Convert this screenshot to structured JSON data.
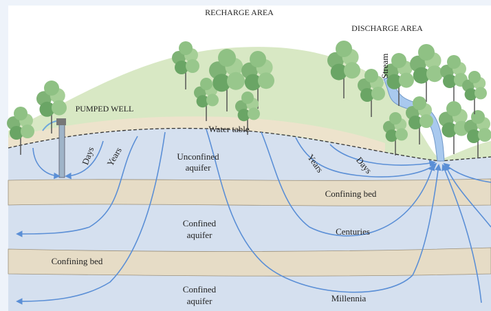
{
  "labels": {
    "recharge_area": "RECHARGE AREA",
    "discharge_area": "DISCHARGE AREA",
    "pumped_well": "PUMPED WELL",
    "water_table": "Water table",
    "stream": "Stream",
    "days_left": "Days",
    "years_left": "Years",
    "unconfined_aquifer": [
      "Unconfined",
      "aquifer"
    ],
    "years_right": "Years",
    "days_right": "Days",
    "confining_bed_upper": "Confining bed",
    "confined_aquifer_upper": [
      "Confined",
      "aquifer"
    ],
    "centuries": "Centuries",
    "confining_bed_lower": "Confining bed",
    "confined_aquifer_lower": [
      "Confined",
      "aquifer"
    ],
    "millennia": "Millennia"
  }
}
